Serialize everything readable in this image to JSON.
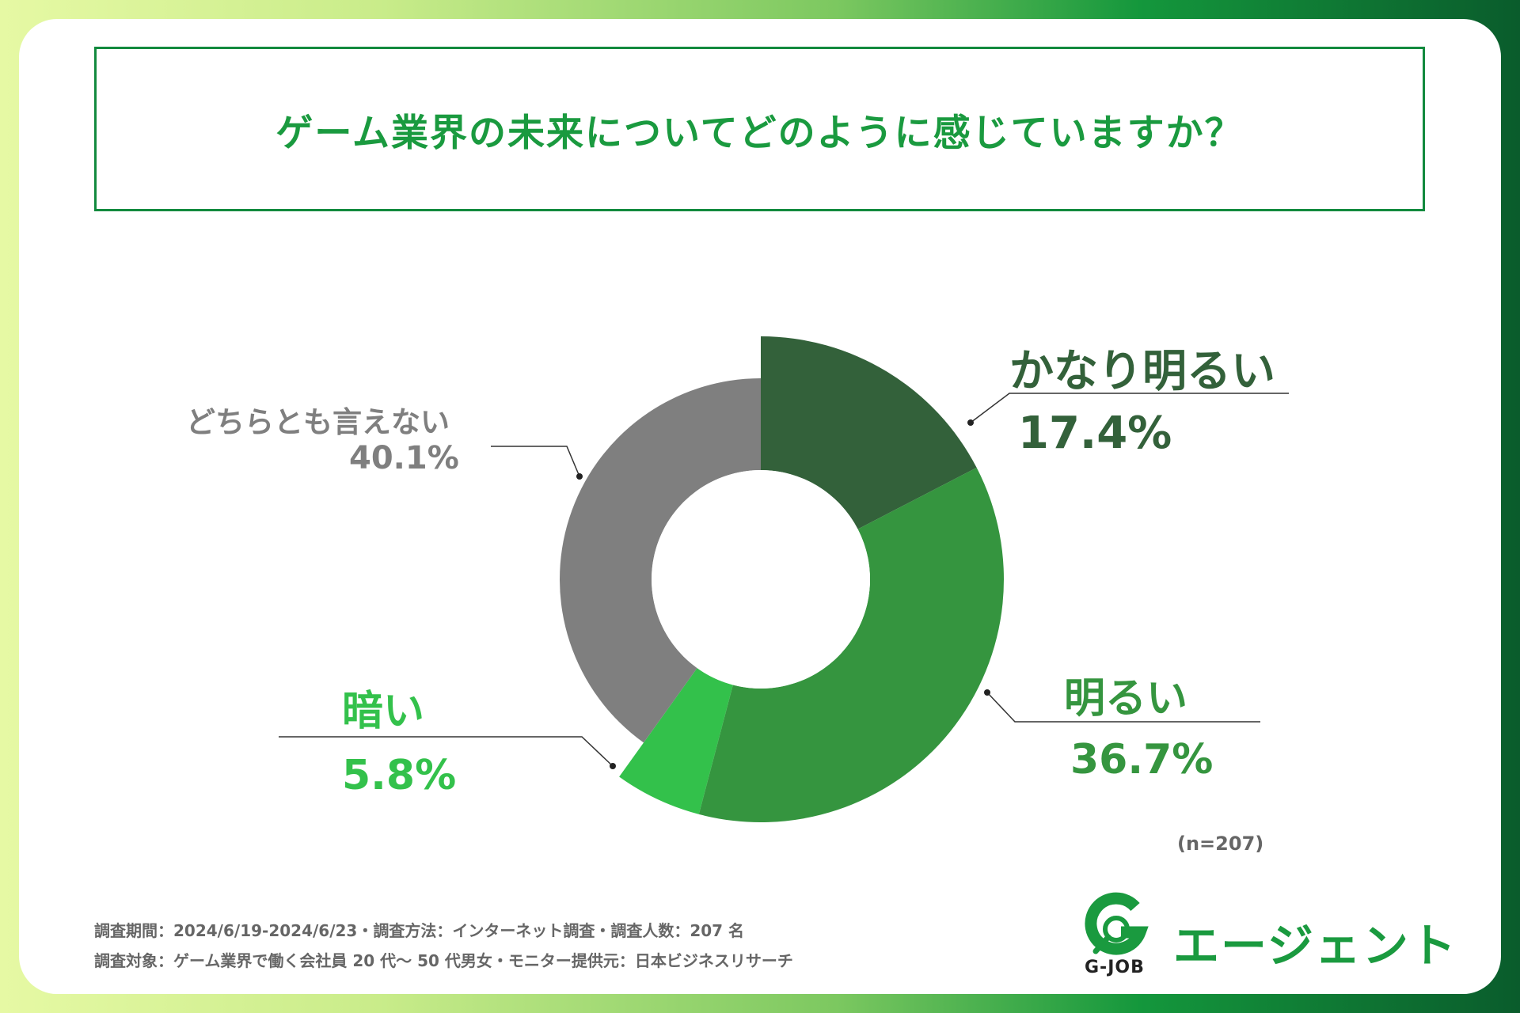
{
  "title": "ゲーム業界の未来についてどのように感じていますか？",
  "chart_data": {
    "type": "pie",
    "title": "ゲーム業界の未来についてどのように感じていますか？",
    "donut": true,
    "slices": [
      {
        "label": "かなり明るい",
        "value": 17.4,
        "value_text": "17.4%",
        "color": "#33613a"
      },
      {
        "label": "明るい",
        "value": 36.7,
        "value_text": "36.7%",
        "color": "#35953f"
      },
      {
        "label": "暗い",
        "value": 5.8,
        "value_text": "5.8%",
        "color": "#33c14b"
      },
      {
        "label": "どちらとも言えない",
        "value": 40.1,
        "value_text": "40.1%",
        "color": "#7f7f7f"
      }
    ],
    "n_label": "(n=207)"
  },
  "footer": {
    "line1": "調査期間：2024/6/19-2024/6/23・調査方法：インターネット調査・調査人数：207 名",
    "line2": "調査対象：ゲーム業界で働く会社員 20 代〜 50 代男女・モニター提供元：日本ビジネスリサーチ"
  },
  "logo": {
    "sub": "G-JOB",
    "text": "エージェント"
  }
}
